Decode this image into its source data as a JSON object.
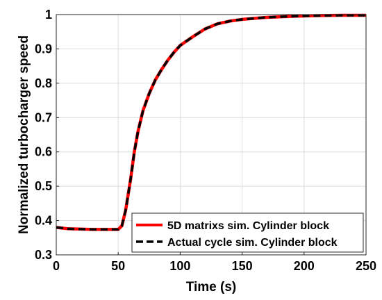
{
  "chart_data": {
    "type": "line",
    "title": "",
    "xlabel": "Time (s)",
    "ylabel": "Normalized turbocharger speed",
    "xlim": [
      0,
      250
    ],
    "ylim": [
      0.3,
      1.0
    ],
    "xticks": [
      0,
      50,
      100,
      150,
      200,
      250
    ],
    "yticks": [
      0.3,
      0.4,
      0.5,
      0.6,
      0.7,
      0.8,
      0.9,
      1.0
    ],
    "xtick_labels": [
      "0",
      "50",
      "100",
      "150",
      "200",
      "250"
    ],
    "ytick_labels": [
      "0.3",
      "0.4",
      "0.5",
      "0.6",
      "0.7",
      "0.8",
      "0.9",
      "1"
    ],
    "grid": true,
    "legend_position": "bottom-right",
    "series": [
      {
        "name": "5D matrixs sim. Cylinder block",
        "color": "#ff0000",
        "line_style": "solid",
        "x": [
          0,
          10,
          20,
          30,
          40,
          50,
          53,
          56,
          60,
          63,
          66,
          70,
          75,
          80,
          85,
          90,
          95,
          100,
          110,
          120,
          130,
          140,
          150,
          170,
          190,
          210,
          230,
          250
        ],
        "y": [
          0.38,
          0.376,
          0.375,
          0.374,
          0.374,
          0.374,
          0.385,
          0.43,
          0.52,
          0.6,
          0.66,
          0.72,
          0.77,
          0.81,
          0.84,
          0.867,
          0.89,
          0.91,
          0.935,
          0.958,
          0.973,
          0.981,
          0.986,
          0.992,
          0.995,
          0.997,
          0.998,
          0.998
        ]
      },
      {
        "name": "Actual cycle sim. Cylinder block",
        "color": "#000000",
        "line_style": "dashed",
        "x": [
          0,
          10,
          20,
          30,
          40,
          50,
          53,
          56,
          60,
          63,
          66,
          70,
          75,
          80,
          85,
          90,
          95,
          100,
          110,
          120,
          130,
          140,
          150,
          170,
          190,
          210,
          230,
          250
        ],
        "y": [
          0.38,
          0.376,
          0.375,
          0.374,
          0.374,
          0.374,
          0.385,
          0.43,
          0.52,
          0.6,
          0.66,
          0.72,
          0.77,
          0.81,
          0.84,
          0.867,
          0.89,
          0.91,
          0.935,
          0.958,
          0.973,
          0.981,
          0.986,
          0.992,
          0.995,
          0.997,
          0.998,
          0.998
        ]
      }
    ]
  }
}
